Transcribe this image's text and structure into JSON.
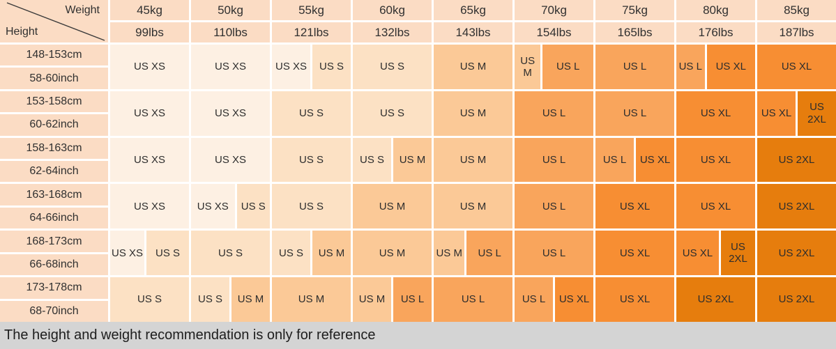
{
  "chart_data": {
    "type": "table",
    "corner": {
      "weight_label": "Weight",
      "height_label": "Height"
    },
    "weights": [
      {
        "kg": "45kg",
        "lbs": "99lbs"
      },
      {
        "kg": "50kg",
        "lbs": "110lbs"
      },
      {
        "kg": "55kg",
        "lbs": "121lbs"
      },
      {
        "kg": "60kg",
        "lbs": "132lbs"
      },
      {
        "kg": "65kg",
        "lbs": "143lbs"
      },
      {
        "kg": "70kg",
        "lbs": "154lbs"
      },
      {
        "kg": "75kg",
        "lbs": "165lbs"
      },
      {
        "kg": "80kg",
        "lbs": "176lbs"
      },
      {
        "kg": "85kg",
        "lbs": "187lbs"
      }
    ],
    "size_colors": {
      "XS": "#fdf0e3",
      "S": "#fce1c4",
      "M": "#fbc997",
      "L": "#f9a55c",
      "XL": "#f78e33",
      "2XL": "#e67d0d"
    },
    "header_bg": "#fbdcc4",
    "footer_bg": "#d4d4d4",
    "rows": [
      {
        "cm": "148-153cm",
        "inch": "58-60inch",
        "cells": [
          "US XS",
          "US XS",
          {
            "parts": [
              "US XS",
              "US S"
            ],
            "ratios": [
              1,
              1
            ]
          },
          "US S",
          "US M",
          {
            "parts": [
              "US M",
              "US L"
            ],
            "ratios": [
              1,
              2
            ]
          },
          "US L",
          {
            "parts": [
              "US L",
              "US XL"
            ],
            "ratios": [
              4,
              7
            ]
          },
          "US XL"
        ]
      },
      {
        "cm": "153-158cm",
        "inch": "60-62inch",
        "cells": [
          "US XS",
          "US XS",
          "US S",
          "US S",
          "US M",
          "US L",
          "US L",
          "US XL",
          {
            "parts": [
              "US XL",
              "US\n2XL"
            ],
            "ratios": [
              1,
              1
            ]
          }
        ]
      },
      {
        "cm": "158-163cm",
        "inch": "62-64inch",
        "cells": [
          "US XS",
          "US XS",
          "US S",
          {
            "parts": [
              "US S",
              "US M"
            ],
            "ratios": [
              1,
              1
            ]
          },
          "US M",
          "US L",
          {
            "parts": [
              "US L",
              "US XL"
            ],
            "ratios": [
              1,
              1
            ]
          },
          "US XL",
          "US 2XL"
        ]
      },
      {
        "cm": "163-168cm",
        "inch": "64-66inch",
        "cells": [
          "US XS",
          {
            "parts": [
              "US XS",
              "US S"
            ],
            "ratios": [
              4,
              3
            ]
          },
          "US S",
          "US M",
          "US M",
          "US L",
          "US XL",
          "US XL",
          "US 2XL"
        ]
      },
      {
        "cm": "168-173cm",
        "inch": "66-68inch",
        "cells": [
          {
            "parts": [
              "US XS",
              "US S"
            ],
            "ratios": [
              4,
              5
            ]
          },
          "US S",
          {
            "parts": [
              "US S",
              "US M"
            ],
            "ratios": [
              1,
              1
            ]
          },
          "US M",
          {
            "parts": [
              "US M",
              "US L"
            ],
            "ratios": [
              2,
              3
            ]
          },
          "US L",
          "US XL",
          {
            "parts": [
              "US XL",
              "US\n2XL"
            ],
            "ratios": [
              5,
              4
            ]
          },
          "US 2XL"
        ]
      },
      {
        "cm": "173-178cm",
        "inch": "68-70inch",
        "cells": [
          "US S",
          {
            "parts": [
              "US S",
              "US M"
            ],
            "ratios": [
              1,
              1
            ]
          },
          "US M",
          {
            "parts": [
              "US M",
              "US L"
            ],
            "ratios": [
              1,
              1
            ]
          },
          "US L",
          {
            "parts": [
              "US L",
              "US XL"
            ],
            "ratios": [
              1,
              1
            ]
          },
          "US XL",
          "US 2XL",
          "US 2XL"
        ]
      }
    ],
    "note": "The height and weight recommendation is only for reference"
  }
}
